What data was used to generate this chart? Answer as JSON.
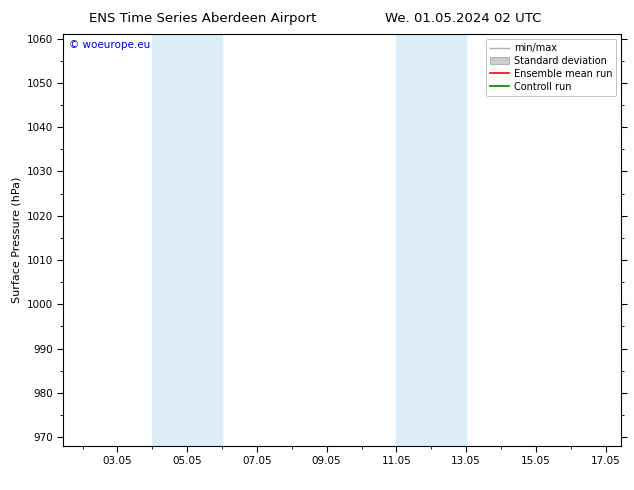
{
  "title_left": "ENS Time Series Aberdeen Airport",
  "title_right": "We. 01.05.2024 02 UTC",
  "ylabel": "Surface Pressure (hPa)",
  "ylim": [
    968,
    1061
  ],
  "yticks": [
    970,
    980,
    990,
    1000,
    1010,
    1020,
    1030,
    1040,
    1050,
    1060
  ],
  "xlim_start": 1.5,
  "xlim_end": 17.5,
  "xtick_labels": [
    "03.05",
    "05.05",
    "07.05",
    "09.05",
    "11.05",
    "13.05",
    "15.05",
    "17.05"
  ],
  "xtick_positions": [
    3.05,
    5.05,
    7.05,
    9.05,
    11.05,
    13.05,
    15.05,
    17.05
  ],
  "shaded_bands": [
    {
      "x_start": 4.05,
      "x_end": 6.05,
      "color": "#ddeef8"
    },
    {
      "x_start": 11.05,
      "x_end": 13.05,
      "color": "#ddeef8"
    }
  ],
  "watermark": "© woeurope.eu",
  "watermark_color": "#0000cc",
  "bg_color": "#ffffff",
  "legend_items": [
    {
      "label": "min/max",
      "color": "#b0b0b0",
      "linewidth": 1.0,
      "linestyle": "-"
    },
    {
      "label": "Standard deviation",
      "color": "#cccccc",
      "linewidth": 5,
      "linestyle": "-"
    },
    {
      "label": "Ensemble mean run",
      "color": "#ff0000",
      "linewidth": 1.2,
      "linestyle": "-"
    },
    {
      "label": "Controll run",
      "color": "#008000",
      "linewidth": 1.2,
      "linestyle": "-"
    }
  ],
  "title_fontsize": 9.5,
  "tick_fontsize": 7.5,
  "ylabel_fontsize": 8,
  "legend_fontsize": 7
}
